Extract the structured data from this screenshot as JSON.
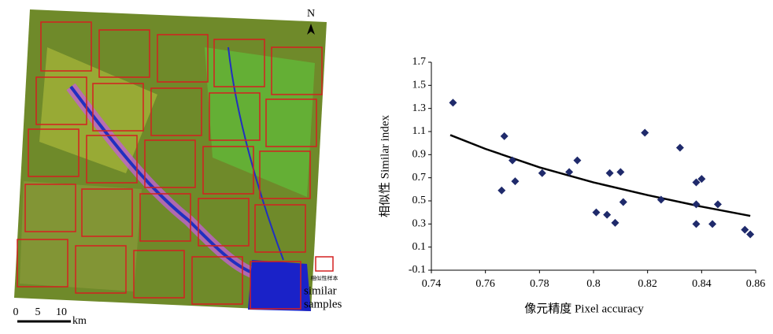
{
  "map": {
    "north": "N",
    "scale_labels": [
      "0",
      "5",
      "10"
    ],
    "scale_unit": "km",
    "legend_label_cn": "相似性样本",
    "legend_label": [
      "similar",
      "samples"
    ]
  },
  "chart_data": {
    "type": "scatter",
    "x_label": "像元精度 Pixel accuracy",
    "y_label": "相似性  Similar index",
    "xlim": [
      0.74,
      0.86
    ],
    "xticks": [
      0.74,
      0.76,
      0.78,
      0.8,
      0.82,
      0.84,
      0.86
    ],
    "ylim": [
      -0.1,
      1.7
    ],
    "yticks": [
      -0.1,
      0.1,
      0.3,
      0.5,
      0.7,
      0.9,
      1.1,
      1.3,
      1.5,
      1.7
    ],
    "color": "#1f2a6b",
    "x": [
      0.748,
      0.767,
      0.77,
      0.771,
      0.766,
      0.781,
      0.791,
      0.794,
      0.801,
      0.805,
      0.806,
      0.808,
      0.81,
      0.811,
      0.819,
      0.825,
      0.832,
      0.84,
      0.838,
      0.838,
      0.838,
      0.844,
      0.846,
      0.856,
      0.858
    ],
    "values": [
      1.35,
      1.06,
      0.85,
      0.67,
      0.59,
      0.74,
      0.75,
      0.85,
      0.4,
      0.38,
      0.74,
      0.31,
      0.75,
      0.49,
      1.09,
      0.51,
      0.96,
      0.69,
      0.66,
      0.47,
      0.3,
      0.3,
      0.47,
      0.25,
      0.21
    ],
    "trend": {
      "color": "#000000",
      "x": [
        0.747,
        0.76,
        0.78,
        0.8,
        0.82,
        0.84,
        0.858
      ],
      "values": [
        1.07,
        0.95,
        0.79,
        0.66,
        0.55,
        0.45,
        0.37
      ]
    }
  }
}
